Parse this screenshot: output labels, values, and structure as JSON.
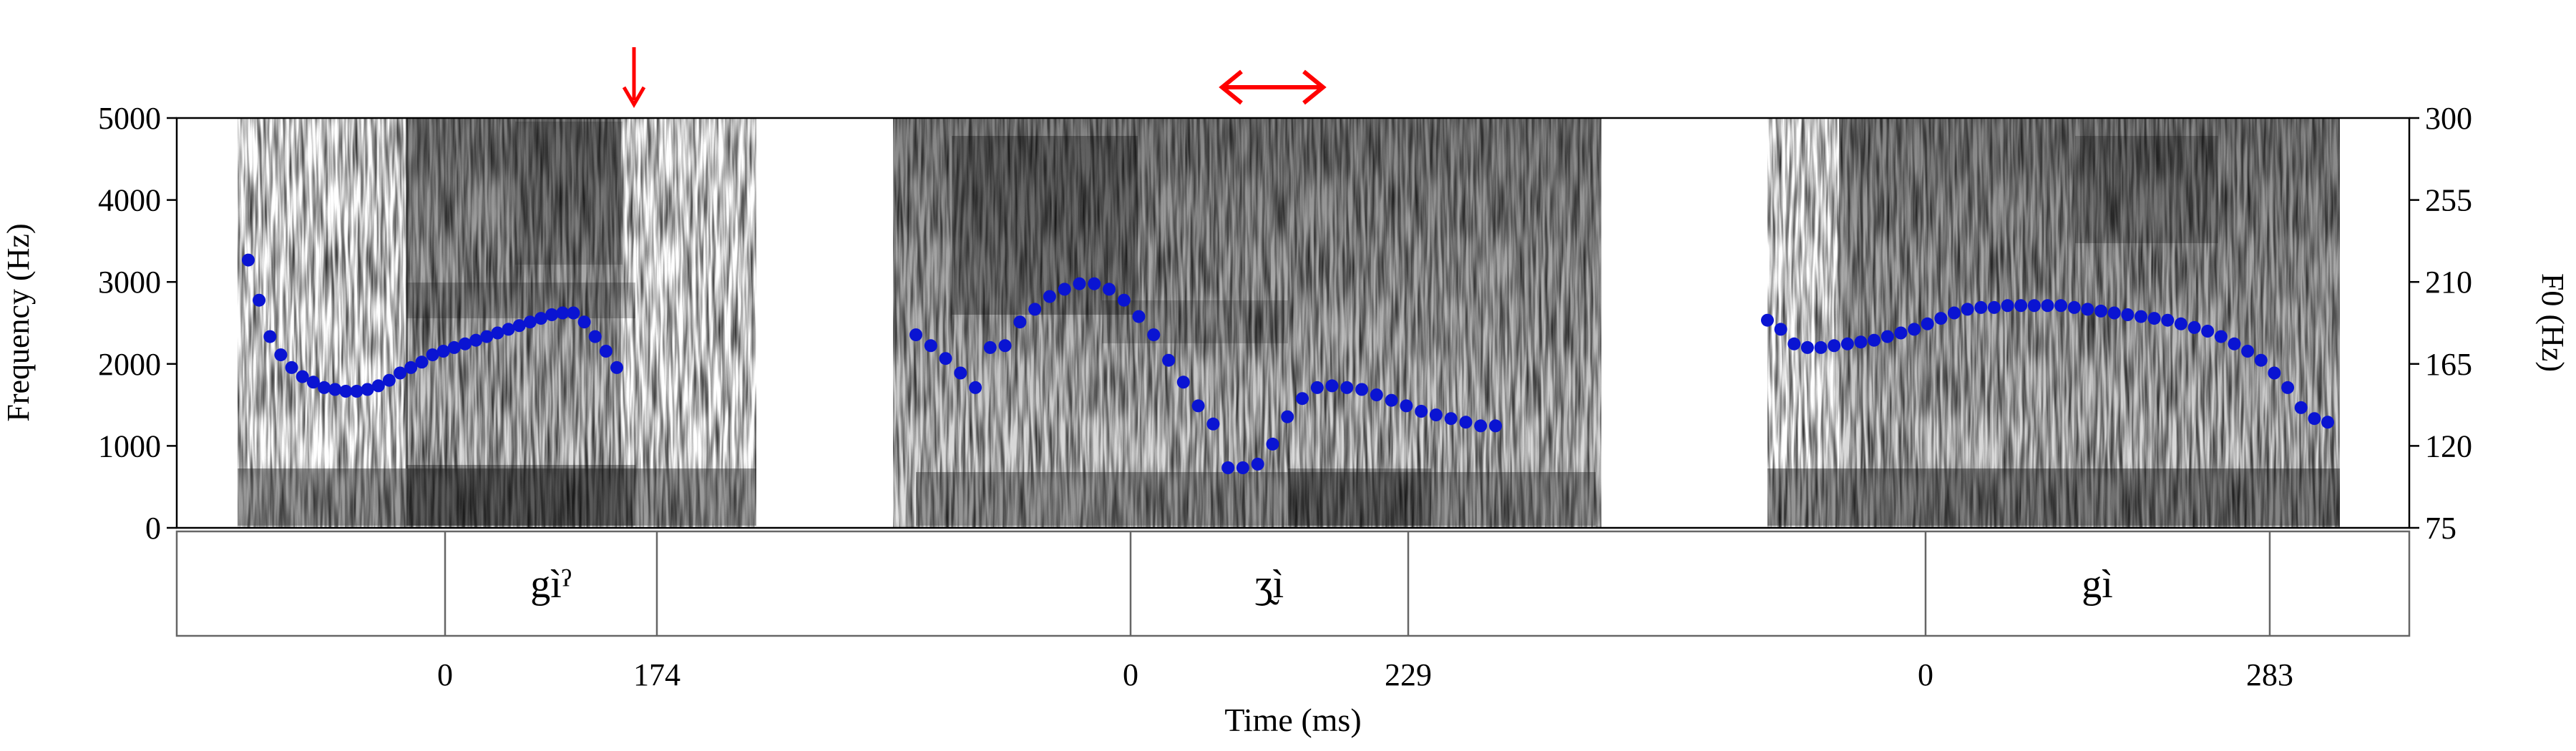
{
  "chart_data": {
    "type": "scatter",
    "ylabel_left": "Frequency (Hz)",
    "ylabel_right": "F0 (Hz)",
    "xlabel": "Time (ms)",
    "left_axis": {
      "ticks": [
        "0",
        "1000",
        "2000",
        "3000",
        "4000",
        "5000"
      ],
      "ylim": [
        0,
        5000
      ]
    },
    "right_axis": {
      "ticks": [
        "75",
        "120",
        "165",
        "210",
        "255",
        "300"
      ],
      "ylim": [
        75,
        300
      ]
    },
    "grid": false,
    "tokens": [
      {
        "label": "gìˀ",
        "duration_ticks": [
          "0",
          "174"
        ],
        "marker": "↓",
        "f0_hz": [
          222,
          200,
          180,
          170,
          163,
          158,
          155,
          152,
          151,
          150,
          150,
          151,
          153,
          156,
          160,
          163,
          166,
          170,
          172,
          174,
          176,
          178,
          180,
          182,
          184,
          186,
          188,
          190,
          192,
          193,
          193,
          188,
          180,
          172,
          163
        ]
      },
      {
        "label": "ʒ̰ì",
        "duration_ticks": [
          "0",
          "229"
        ],
        "marker": "↔",
        "f0_hz": [
          181,
          175,
          168,
          160,
          152,
          174,
          175,
          188,
          195,
          202,
          206,
          209,
          209,
          206,
          200,
          191,
          181,
          167,
          155,
          142,
          132,
          108,
          108,
          110,
          121,
          136,
          146,
          152,
          153,
          152,
          151,
          148,
          145,
          142,
          139,
          137,
          135,
          133,
          131,
          131
        ]
      },
      {
        "label": "gì",
        "duration_ticks": [
          "0",
          "283"
        ],
        "marker": "",
        "f0_hz": [
          189,
          184,
          176,
          174,
          174,
          175,
          176,
          177,
          178,
          180,
          182,
          184,
          187,
          190,
          193,
          195,
          196,
          196,
          197,
          197,
          197,
          197,
          197,
          196,
          195,
          194,
          193,
          192,
          191,
          190,
          189,
          187,
          185,
          183,
          180,
          176,
          172,
          167,
          160,
          152,
          141,
          135,
          133
        ]
      }
    ]
  },
  "colors": {
    "f0_points": "#0a14d2",
    "markers": "#ff0000",
    "spectrogram": "#202020"
  }
}
